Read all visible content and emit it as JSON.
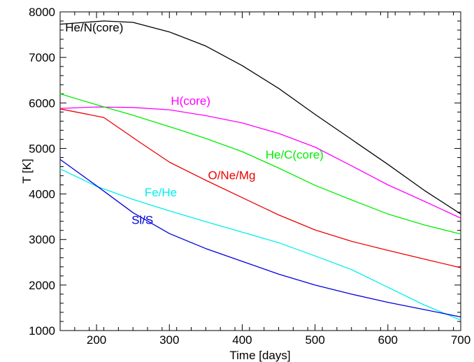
{
  "chart_data": {
    "type": "line",
    "title": "",
    "xlabel": "Time [days]",
    "ylabel": "T [K]",
    "xlim": [
      150,
      700
    ],
    "ylim": [
      1000,
      8000
    ],
    "xticks": [
      200,
      300,
      400,
      500,
      600,
      700
    ],
    "yticks": [
      1000,
      2000,
      3000,
      4000,
      5000,
      6000,
      7000,
      8000
    ],
    "grid": false,
    "legend": "none",
    "series": [
      {
        "name": "He/N(core)",
        "color": "#000000",
        "label_at": [
          157,
          7570
        ],
        "x": [
          150,
          210,
          250,
          300,
          350,
          400,
          450,
          500,
          550,
          600,
          650,
          700
        ],
        "y": [
          7730,
          7800,
          7770,
          7560,
          7250,
          6820,
          6320,
          5750,
          5200,
          4650,
          4080,
          3560
        ]
      },
      {
        "name": "H(core)",
        "color": "#ff00ff",
        "label_at": [
          302,
          5960
        ],
        "x": [
          150,
          200,
          250,
          300,
          350,
          400,
          450,
          500,
          550,
          600,
          650,
          700
        ],
        "y": [
          5880,
          5910,
          5900,
          5850,
          5720,
          5560,
          5330,
          5030,
          4620,
          4200,
          3840,
          3470
        ]
      },
      {
        "name": "He/C(core)",
        "color": "#00ee00",
        "label_at": [
          432,
          4780
        ],
        "x": [
          150,
          200,
          250,
          300,
          350,
          400,
          450,
          500,
          550,
          600,
          650,
          700
        ],
        "y": [
          6200,
          5960,
          5730,
          5480,
          5220,
          4930,
          4570,
          4190,
          3870,
          3560,
          3320,
          3120
        ]
      },
      {
        "name": "O/Ne/Mg",
        "color": "#ee0000",
        "label_at": [
          353,
          4320
        ],
        "x": [
          150,
          210,
          260,
          300,
          350,
          400,
          450,
          500,
          550,
          600,
          650,
          700
        ],
        "y": [
          5870,
          5680,
          5130,
          4700,
          4300,
          3920,
          3540,
          3210,
          2960,
          2760,
          2570,
          2380
        ]
      },
      {
        "name": "Fe/He",
        "color": "#00eeee",
        "label_at": [
          266,
          3950
        ],
        "x": [
          150,
          200,
          250,
          300,
          350,
          400,
          450,
          500,
          550,
          600,
          650,
          700
        ],
        "y": [
          4550,
          4170,
          3880,
          3630,
          3390,
          3160,
          2930,
          2640,
          2340,
          1950,
          1560,
          1230
        ]
      },
      {
        "name": "Si/S",
        "color": "#0000dd",
        "label_at": [
          248,
          3340
        ],
        "x": [
          150,
          200,
          250,
          300,
          350,
          400,
          450,
          500,
          550,
          600,
          650,
          700
        ],
        "y": [
          4760,
          4180,
          3590,
          3130,
          2800,
          2520,
          2240,
          2000,
          1800,
          1620,
          1460,
          1300
        ]
      }
    ]
  }
}
